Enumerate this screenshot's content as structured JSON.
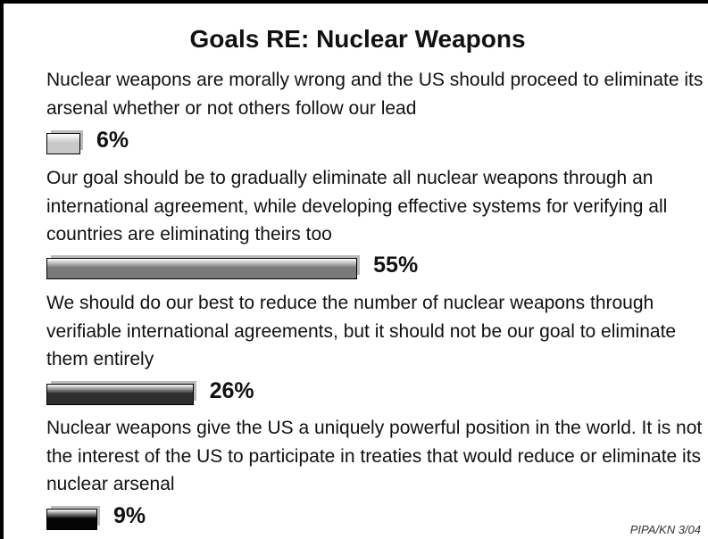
{
  "chart_data": {
    "type": "bar",
    "orientation": "horizontal",
    "title": "Goals RE:  Nuclear Weapons",
    "categories": [
      "Nuclear weapons are morally wrong and the US should proceed to eliminate its arsenal whether or not others follow our lead",
      "Our goal should be to gradually eliminate all nuclear weapons through an international agreement, while developing effective systems for verifying all countries are eliminating theirs too",
      "We should do our best to reduce the number of nuclear weapons through verifiable international agreements, but it should not be our goal to eliminate them entirely",
      "Nuclear weapons give the US a uniquely powerful position in the world.  It is not in the interest of the US to participate in treaties that would reduce or eliminate its nuclear arsenal"
    ],
    "values": [
      6,
      55,
      26,
      9
    ],
    "value_labels": [
      "6%",
      "55%",
      "26%",
      "9%"
    ],
    "colors": [
      "#c8c8c8",
      "#7a7a7a",
      "#2e2e2e",
      "#050505"
    ],
    "source": "PIPA/KN 3/04"
  }
}
